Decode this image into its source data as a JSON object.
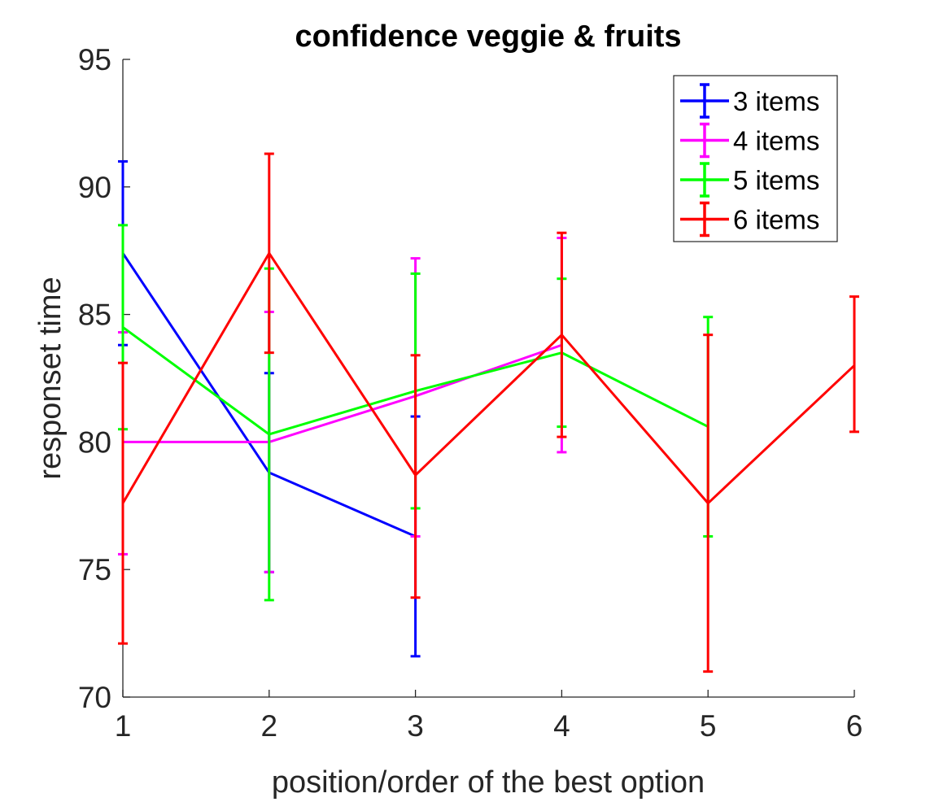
{
  "chart_data": {
    "type": "line",
    "title": "confidence veggie & fruits",
    "xlabel": "position/order of the best option",
    "ylabel": "responset time",
    "xlim": [
      1,
      6
    ],
    "ylim": [
      70,
      95
    ],
    "xticks": [
      1,
      2,
      3,
      4,
      5,
      6
    ],
    "yticks": [
      70,
      75,
      80,
      85,
      90,
      95
    ],
    "error_bars": true,
    "legend_position": "top-right",
    "series": [
      {
        "name": "3 items",
        "color": "#0000ff",
        "x": [
          1,
          2,
          3
        ],
        "values": [
          87.4,
          78.8,
          76.3
        ],
        "lower": [
          83.8,
          74.9,
          71.6
        ],
        "upper": [
          91.0,
          82.7,
          81.0
        ]
      },
      {
        "name": "4 items",
        "color": "#ff00ff",
        "x": [
          1,
          2,
          3,
          4
        ],
        "values": [
          80.0,
          80.0,
          81.8,
          83.8
        ],
        "lower": [
          75.6,
          74.9,
          76.3,
          79.6
        ],
        "upper": [
          84.3,
          85.1,
          87.2,
          88.0
        ]
      },
      {
        "name": "5 items",
        "color": "#00ff00",
        "x": [
          1,
          2,
          3,
          4,
          5
        ],
        "values": [
          84.5,
          80.3,
          82.0,
          83.5,
          80.6
        ],
        "lower": [
          80.5,
          73.8,
          77.4,
          80.6,
          76.3
        ],
        "upper": [
          88.5,
          86.8,
          86.6,
          86.4,
          84.9
        ]
      },
      {
        "name": "6 items",
        "color": "#ff0000",
        "x": [
          1,
          2,
          3,
          4,
          5,
          6
        ],
        "values": [
          77.6,
          87.4,
          78.7,
          84.2,
          77.6,
          83.0
        ],
        "lower": [
          72.1,
          83.5,
          73.9,
          80.2,
          71.0,
          80.4
        ],
        "upper": [
          83.1,
          91.3,
          83.4,
          88.2,
          84.2,
          85.7
        ]
      }
    ]
  }
}
